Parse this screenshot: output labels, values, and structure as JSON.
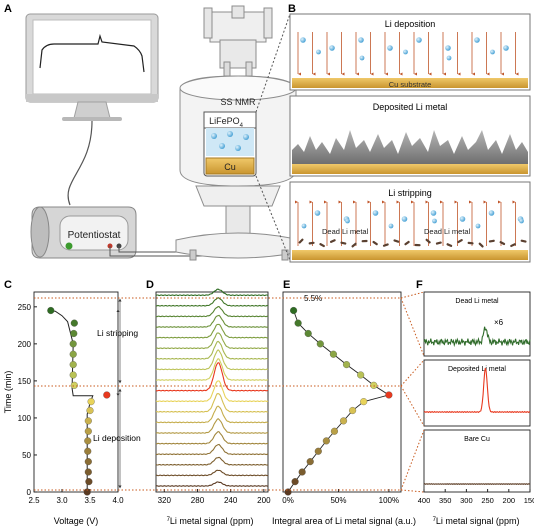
{
  "panel_letters": {
    "a": "A",
    "b": "B",
    "c": "C",
    "d": "D",
    "e": "E",
    "f": "F"
  },
  "setup": {
    "potentiostat_label": "Potentiostat",
    "nmr_label": "SS NMR",
    "cathode_label": "LiFePO",
    "cathode_subscript": "4",
    "anode_label": "Cu"
  },
  "schematic": {
    "deposition_title": "Li deposition",
    "substrate_label": "Cu substrate",
    "deposited_title": "Deposited Li metal",
    "stripping_title": "Li stripping",
    "dead_label_1": "Dead Li metal",
    "dead_label_2": "Dead Li metal"
  },
  "colors": {
    "substrate": "#d9a940",
    "metal_grey": "#8c8c8c",
    "ion_blue": "#5bb0de",
    "arrow_red": "#c0562a",
    "peak_red": "#e8391f",
    "curve_green": "#2f6b2a",
    "guide_dots": "#c85a1e"
  },
  "chart_data": [
    {
      "panel": "C",
      "type": "scatter",
      "xlabel": "Voltage (V)",
      "ylabel": "Time (min)",
      "xlim": [
        2.5,
        4.0
      ],
      "ylim": [
        0,
        270
      ],
      "x_ticks": [
        "2.5",
        "3.0",
        "3.5",
        "4.0"
      ],
      "y_ticks": [
        "0",
        "50",
        "100",
        "150",
        "200",
        "250"
      ],
      "annotations": [
        "Li stripping",
        "Li deposition"
      ],
      "line": [
        [
          3.45,
          0
        ],
        [
          3.45,
          105
        ],
        [
          3.5,
          120
        ],
        [
          3.55,
          130
        ],
        [
          3.2,
          130
        ],
        [
          3.18,
          140
        ],
        [
          3.2,
          200
        ],
        [
          3.1,
          230
        ],
        [
          3.0,
          238
        ],
        [
          2.88,
          244
        ],
        [
          2.78,
          245
        ]
      ],
      "points": [
        [
          3.45,
          0
        ],
        [
          3.48,
          14
        ],
        [
          3.47,
          27
        ],
        [
          3.47,
          41
        ],
        [
          3.46,
          55
        ],
        [
          3.46,
          69
        ],
        [
          3.47,
          82
        ],
        [
          3.47,
          96
        ],
        [
          3.5,
          110
        ],
        [
          3.52,
          122
        ],
        [
          3.8,
          131
        ],
        [
          3.22,
          144
        ],
        [
          3.2,
          158
        ],
        [
          3.2,
          172
        ],
        [
          3.2,
          186
        ],
        [
          3.2,
          200
        ],
        [
          3.21,
          214
        ],
        [
          3.22,
          228
        ],
        [
          2.8,
          245
        ]
      ]
    },
    {
      "panel": "D",
      "type": "line",
      "xlabel": "Li metal signal (ppm)",
      "xlabel_sup": "7",
      "xlim": [
        330,
        195
      ],
      "x_ticks": [
        "320",
        "280",
        "240",
        "200"
      ],
      "trace_count": 19,
      "highlighted_trace": 9,
      "peak_ppm": 255
    },
    {
      "panel": "E",
      "type": "scatter",
      "xlabel": "Integral area of Li metal signal (a.u.)",
      "x_ticks": [
        "0%",
        "50%",
        "100%"
      ],
      "xlim": [
        -0.05,
        1.12
      ],
      "ylim": [
        0,
        270
      ],
      "annotation": "5.5%",
      "points": [
        [
          0.0,
          0
        ],
        [
          0.07,
          14
        ],
        [
          0.14,
          27
        ],
        [
          0.22,
          41
        ],
        [
          0.3,
          55
        ],
        [
          0.38,
          69
        ],
        [
          0.46,
          82
        ],
        [
          0.55,
          96
        ],
        [
          0.64,
          110
        ],
        [
          0.75,
          122
        ],
        [
          1.0,
          131
        ],
        [
          0.85,
          144
        ],
        [
          0.72,
          158
        ],
        [
          0.58,
          172
        ],
        [
          0.45,
          186
        ],
        [
          0.32,
          200
        ],
        [
          0.2,
          214
        ],
        [
          0.1,
          228
        ],
        [
          0.055,
          245
        ]
      ]
    },
    {
      "panel": "F",
      "type": "line",
      "xlabel": "Li metal signal (ppm)",
      "xlabel_sup": "7",
      "xlim": [
        400,
        150
      ],
      "x_ticks": [
        "400",
        "350",
        "300",
        "250",
        "200",
        "150"
      ],
      "subplots": [
        {
          "label": "Dead Li metal",
          "multiplier": "×6",
          "color": "#2f6b2a",
          "peak_ppm": 255,
          "peak_height": 0.35
        },
        {
          "label": "Deposited Li metal",
          "color": "#e8391f",
          "peak_ppm": 255,
          "peak_height": 1.0
        },
        {
          "label": "Bare Cu",
          "color": "#5a3a22",
          "peak_ppm": 255,
          "peak_height": 0.0
        }
      ]
    }
  ]
}
